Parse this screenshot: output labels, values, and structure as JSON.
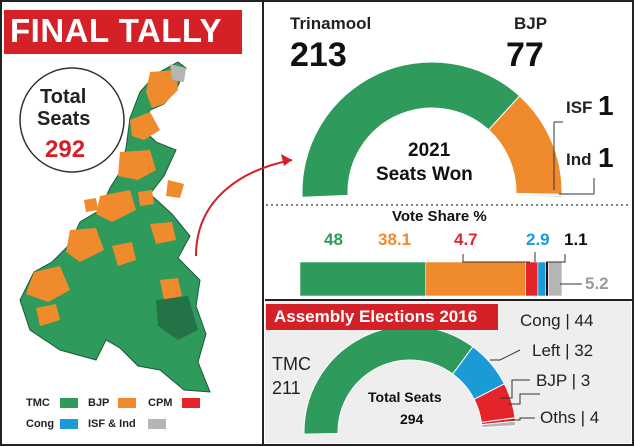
{
  "header": {
    "title": "FINAL TALLY"
  },
  "total_box": {
    "label_line1": "Total",
    "label_line2": "Seats",
    "value": "292"
  },
  "legend": [
    {
      "label": "TMC",
      "color": "#2e9a5c"
    },
    {
      "label": "BJP",
      "color": "#ef8b2c"
    },
    {
      "label": "CPM",
      "color": "#e4232b"
    },
    {
      "label": "Cong",
      "color": "#1a9ad6"
    },
    {
      "label": "ISF & Ind",
      "color": "#b5b5b5"
    }
  ],
  "seats_2021": {
    "center_line1": "2021",
    "center_line2": "Seats Won",
    "tmc": {
      "name": "Trinamool",
      "value": "213"
    },
    "bjp": {
      "name": "BJP",
      "value": "77"
    },
    "isf": {
      "name": "ISF",
      "value": "1"
    },
    "ind": {
      "name": "Ind",
      "value": "1"
    }
  },
  "vote_share": {
    "title": "Vote Share %",
    "labels": [
      "48",
      "38.1",
      "4.7",
      "2.9",
      "1.1",
      "5.2"
    ]
  },
  "assembly_2016": {
    "title": "Assembly Elections 2016",
    "center_line1": "Total Seats",
    "center_line2": "294",
    "tmc_name": "TMC",
    "tmc_value": "211",
    "labels": [
      "Cong | 44",
      "Left | 32",
      "BJP | 3",
      "Oths | 4"
    ]
  },
  "chart_data": [
    {
      "type": "pie",
      "title": "2021 Seats Won",
      "categories": [
        "Trinamool",
        "BJP",
        "ISF",
        "Ind"
      ],
      "values": [
        213,
        77,
        1,
        1
      ],
      "colors": [
        "#2e9a5c",
        "#ef8b2c",
        "#b5b5b5",
        "#b5b5b5"
      ]
    },
    {
      "type": "bar",
      "title": "Vote Share %",
      "categories": [
        "TMC",
        "BJP",
        "CPM",
        "Cong",
        "ISF & Ind",
        "Others"
      ],
      "values": [
        48,
        38.1,
        4.7,
        2.9,
        1.1,
        5.2
      ],
      "colors": [
        "#2e9a5c",
        "#ef8b2c",
        "#e4232b",
        "#1a9ad6",
        "#111111",
        "#b5b5b5"
      ]
    },
    {
      "type": "pie",
      "title": "Assembly Elections 2016",
      "categories": [
        "TMC",
        "Cong",
        "Left",
        "BJP",
        "Oths"
      ],
      "values": [
        211,
        44,
        32,
        3,
        4
      ],
      "colors": [
        "#2e9a5c",
        "#1a9ad6",
        "#e4232b",
        "#e4232b",
        "#b5b5b5"
      ]
    }
  ]
}
